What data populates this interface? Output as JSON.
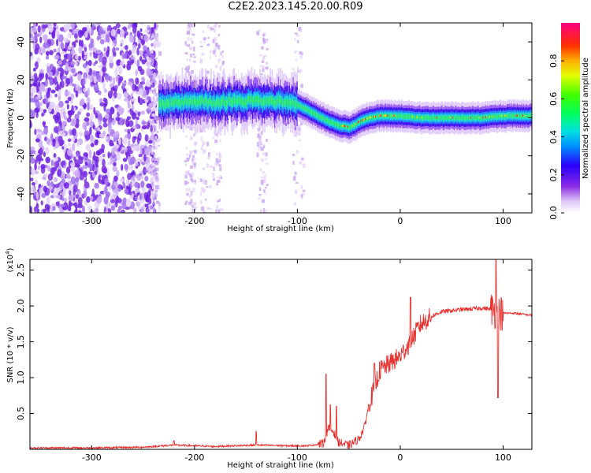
{
  "title": "C2E2.2023.145.20.00.R09",
  "colors": {
    "snr_line": "#e8302e",
    "axis": "#000000"
  },
  "spectrogram": {
    "type": "heatmap",
    "xlabel": "Height of straight line (km)",
    "ylabel": "Frequency (Hz)",
    "xlim": [
      -360,
      128
    ],
    "ylim": [
      -50,
      50
    ],
    "xticks": [
      -300,
      -200,
      -100,
      0,
      100
    ],
    "xtick_labels": [
      "-300",
      "-200",
      "-100",
      "0",
      "100"
    ],
    "yticks": [
      -40,
      -20,
      0,
      20,
      40
    ],
    "ytick_labels": [
      "-40",
      "-20",
      "0",
      "20",
      "40"
    ],
    "ridge": {
      "x": [
        -235,
        -220,
        -200,
        -180,
        -160,
        -140,
        -120,
        -100,
        -90,
        -80,
        -70,
        -60,
        -50,
        -45,
        -40,
        -30,
        -20,
        -10,
        0,
        20,
        50,
        80,
        100,
        128
      ],
      "y": [
        7,
        8,
        9,
        8,
        9,
        9,
        9,
        7,
        4,
        1,
        -2,
        -4,
        -5,
        -4,
        -2,
        0,
        1,
        1,
        1,
        0,
        0,
        0,
        1,
        1
      ]
    },
    "colorbar": {
      "label": "Normalized spectral amplitude",
      "range": [
        0,
        1
      ],
      "ticks": [
        0.0,
        0.2,
        0.4,
        0.6,
        0.8
      ],
      "tick_labels": [
        "0.0",
        "0.2",
        "0.4",
        "0.6",
        "0.8"
      ]
    }
  },
  "snr": {
    "type": "line",
    "xlabel": "Height of straight line (km)",
    "ylabel": "SNR (10 * v/v)",
    "scale_note": "(x10",
    "scale_exp": "4",
    "xlim": [
      -360,
      128
    ],
    "ylim": [
      0,
      2.65
    ],
    "xticks": [
      -300,
      -200,
      -100,
      0,
      100
    ],
    "xtick_labels": [
      "-300",
      "-200",
      "-100",
      "0",
      "100"
    ],
    "yticks": [
      0.5,
      1.0,
      1.5,
      2.0,
      2.5
    ],
    "ytick_labels": [
      "0.5",
      "1.0",
      "1.5",
      "2.0",
      "2.5"
    ],
    "envelope": {
      "x": [
        -360,
        -300,
        -250,
        -220,
        -200,
        -180,
        -140,
        -110,
        -90,
        -75,
        -70,
        -65,
        -60,
        -50,
        -40,
        -35,
        -30,
        -25,
        -20,
        -10,
        0,
        10,
        20,
        30,
        40,
        60,
        80,
        90,
        95,
        100,
        110,
        128
      ],
      "y": [
        0.02,
        0.02,
        0.03,
        0.06,
        0.05,
        0.04,
        0.06,
        0.05,
        0.05,
        0.08,
        0.3,
        0.25,
        0.1,
        0.05,
        0.15,
        0.3,
        0.65,
        0.85,
        1.1,
        1.2,
        1.3,
        1.5,
        1.75,
        1.85,
        1.92,
        1.95,
        1.97,
        1.95,
        1.9,
        1.9,
        1.9,
        1.87
      ]
    },
    "spikes": [
      {
        "x": -220,
        "y": 0.12
      },
      {
        "x": -140,
        "y": 0.25
      },
      {
        "x": -72,
        "y": 1.05
      },
      {
        "x": -68,
        "y": 0.62
      },
      {
        "x": -62,
        "y": 0.6
      },
      {
        "x": -25,
        "y": 1.2
      },
      {
        "x": 10,
        "y": 2.12
      },
      {
        "x": 93,
        "y": 2.65
      },
      {
        "x": 95,
        "y": 0.72
      }
    ]
  }
}
